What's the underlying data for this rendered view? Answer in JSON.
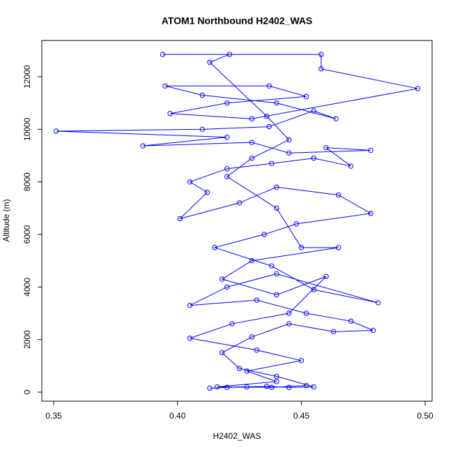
{
  "chart_data": {
    "type": "line",
    "title": "ATOM1 Northbound H2402_WAS",
    "x_label": "H2402_WAS",
    "y_label": "Altitude (m)",
    "color": "#0000ff",
    "markers": true,
    "xlim": [
      0.3452,
      0.5028
    ],
    "ylim": [
      -345,
      13380
    ],
    "xticks": [
      {
        "value": 0.35,
        "label": "0.35"
      },
      {
        "value": 0.4,
        "label": "0.40"
      },
      {
        "value": 0.45,
        "label": "0.45"
      },
      {
        "value": 0.5,
        "label": "0.50"
      }
    ],
    "yticks": [
      0,
      2000,
      4000,
      6000,
      8000,
      10000,
      12000
    ],
    "x": [
      0.413,
      0.42,
      0.428,
      0.436,
      0.445,
      0.455,
      0.44,
      0.425,
      0.418,
      0.43,
      0.445,
      0.463,
      0.479,
      0.47,
      0.452,
      0.432,
      0.405,
      0.42,
      0.44,
      0.481,
      0.455,
      0.438,
      0.415,
      0.435,
      0.448,
      0.478,
      0.465,
      0.44,
      0.425,
      0.401,
      0.412,
      0.405,
      0.42,
      0.438,
      0.455,
      0.47,
      0.46,
      0.478,
      0.445,
      0.43,
      0.386,
      0.42,
      0.351,
      0.41,
      0.437,
      0.455,
      0.464,
      0.44,
      0.41,
      0.395,
      0.437,
      0.452,
      0.42,
      0.397,
      0.43,
      0.497,
      0.458,
      0.458,
      0.394,
      0.421,
      0.413,
      0.436,
      0.445,
      0.43,
      0.42,
      0.44,
      0.45,
      0.465,
      0.43,
      0.418,
      0.44,
      0.46,
      0.445,
      0.422,
      0.405,
      0.432,
      0.45,
      0.428,
      0.44,
      0.416,
      0.438,
      0.452
    ],
    "series": [
      {
        "name": "Altitude",
        "values": [
          150,
          180,
          200,
          220,
          180,
          200,
          600,
          900,
          1500,
          2100,
          2600,
          2300,
          2350,
          2700,
          3000,
          3500,
          3300,
          4000,
          4500,
          3400,
          3900,
          4800,
          5500,
          6000,
          6400,
          6800,
          7500,
          7800,
          7200,
          6600,
          7600,
          8000,
          8500,
          8700,
          8900,
          8600,
          9300,
          9200,
          9100,
          9500,
          9370,
          9700,
          9930,
          10000,
          10100,
          10700,
          10400,
          11000,
          11300,
          11650,
          11650,
          11250,
          11000,
          10600,
          10400,
          11550,
          12300,
          12850,
          12850,
          12850,
          12550,
          10500,
          9600,
          8900,
          8200,
          7000,
          5500,
          5500,
          5000,
          4300,
          3700,
          4400,
          3000,
          2600,
          2050,
          1600,
          1200,
          800,
          400,
          200,
          180,
          250
        ]
      }
    ]
  }
}
